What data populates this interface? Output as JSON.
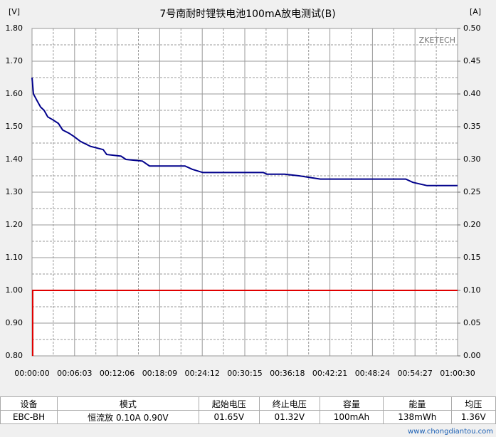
{
  "chart_data": {
    "type": "line",
    "title": "7号南耐时锂铁电池100mA放电测试(B)",
    "y_unit": "[V]",
    "y2_unit": "[A]",
    "annotation": "ZKETECH",
    "xlim": [
      0,
      3630
    ],
    "xticks": [
      {
        "value": 0,
        "label": "00:00:00"
      },
      {
        "value": 363,
        "label": "00:06:03"
      },
      {
        "value": 726,
        "label": "00:12:06"
      },
      {
        "value": 1089,
        "label": "00:18:09"
      },
      {
        "value": 1452,
        "label": "00:24:12"
      },
      {
        "value": 1815,
        "label": "00:30:15"
      },
      {
        "value": 2178,
        "label": "00:36:18"
      },
      {
        "value": 2541,
        "label": "00:42:21"
      },
      {
        "value": 2904,
        "label": "00:48:24"
      },
      {
        "value": 3267,
        "label": "00:54:27"
      },
      {
        "value": 3630,
        "label": "01:00:30"
      }
    ],
    "ylim": [
      0.8,
      1.8
    ],
    "yticks": [
      {
        "value": 0.8,
        "label": "0.80"
      },
      {
        "value": 0.9,
        "label": "0.90"
      },
      {
        "value": 1.0,
        "label": "1.00"
      },
      {
        "value": 1.1,
        "label": "1.10"
      },
      {
        "value": 1.2,
        "label": "1.20"
      },
      {
        "value": 1.3,
        "label": "1.30"
      },
      {
        "value": 1.4,
        "label": "1.40"
      },
      {
        "value": 1.5,
        "label": "1.50"
      },
      {
        "value": 1.6,
        "label": "1.60"
      },
      {
        "value": 1.7,
        "label": "1.70"
      },
      {
        "value": 1.8,
        "label": "1.80"
      }
    ],
    "y2lim": [
      0,
      0.5
    ],
    "y2ticks": [
      {
        "value": 0,
        "label": "0.00"
      },
      {
        "value": 0.05,
        "label": "0.05"
      },
      {
        "value": 0.1,
        "label": "0.10"
      },
      {
        "value": 0.15,
        "label": "0.15"
      },
      {
        "value": 0.2,
        "label": "0.20"
      },
      {
        "value": 0.25,
        "label": "0.25"
      },
      {
        "value": 0.3,
        "label": "0.30"
      },
      {
        "value": 0.35,
        "label": "0.35"
      },
      {
        "value": 0.4,
        "label": "0.40"
      },
      {
        "value": 0.45,
        "label": "0.45"
      },
      {
        "value": 0.5,
        "label": "0.50"
      }
    ],
    "grid": true,
    "series": [
      {
        "color": "#00008b",
        "axis": "y",
        "x": [
          0,
          12,
          42,
          73,
          103,
          134,
          182,
          225,
          261,
          316,
          358,
          413,
          498,
          607,
          637,
          759,
          801,
          941,
          1002,
          1305,
          1366,
          1457,
          1973,
          2004,
          2155,
          2277,
          2459,
          3188,
          3248,
          3370,
          3630
        ],
        "values": [
          1.65,
          1.6,
          1.58,
          1.56,
          1.55,
          1.53,
          1.52,
          1.51,
          1.49,
          1.48,
          1.47,
          1.455,
          1.44,
          1.43,
          1.415,
          1.41,
          1.4,
          1.395,
          1.38,
          1.38,
          1.37,
          1.36,
          1.36,
          1.355,
          1.355,
          1.35,
          1.34,
          1.34,
          1.33,
          1.32,
          1.32
        ]
      },
      {
        "color": "#e00000",
        "axis": "y2",
        "x": [
          6,
          6,
          3630
        ],
        "values": [
          0,
          0.1,
          0.1
        ]
      }
    ]
  },
  "table": {
    "header": [
      "设备",
      "模式",
      "起始电压",
      "终止电压",
      "容量",
      "能量",
      "均压"
    ],
    "rows": [
      [
        "EBC-BH",
        "恒流放 0.10A 0.90V",
        "01.65V",
        "01.32V",
        "100mAh",
        "138mWh",
        "1.36V"
      ]
    ]
  },
  "watermark": "www.chongdiantou.com"
}
